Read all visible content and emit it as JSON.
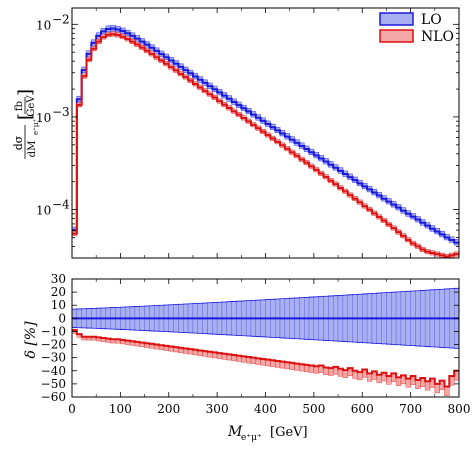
{
  "chart_data": [
    {
      "type": "line",
      "subtype": "histogram-band",
      "panel": "main",
      "yscale": "log",
      "xlim": [
        0,
        800
      ],
      "ylim": [
        3e-05,
        0.015
      ],
      "ylabel": {
        "num": "dσ",
        "den_main": "dM",
        "den_sub": "e⁺μ⁺",
        "unit_num": "fb",
        "unit_den": "GeV"
      },
      "yticks": [
        {
          "value": 0.0001,
          "base": "10",
          "exp": "−4"
        },
        {
          "value": 0.001,
          "base": "10",
          "exp": "−3"
        },
        {
          "value": 0.01,
          "base": "10",
          "exp": "−2"
        }
      ],
      "legend_position": "top-right",
      "bin_width": 10,
      "bin_edges_start": 0,
      "series": [
        {
          "name": "LO",
          "color": "#1a1adc",
          "fill": "#a8b0f2",
          "values": [
            6e-05,
            0.00155,
            0.0032,
            0.0048,
            0.0063,
            0.0075,
            0.0084,
            0.0089,
            0.009,
            0.0088,
            0.00845,
            0.008,
            0.0075,
            0.007,
            0.0065,
            0.00603,
            0.00558,
            0.00516,
            0.00477,
            0.00441,
            0.00407,
            0.00376,
            0.00347,
            0.0032,
            0.00296,
            0.00273,
            0.00252,
            0.00233,
            0.00215,
            0.00199,
            0.00184,
            0.0017,
            0.00157,
            0.00145,
            0.00134,
            0.00124,
            0.00115,
            0.00106,
            0.00098,
            0.000906,
            0.000838,
            0.000775,
            0.000717,
            0.000663,
            0.000613,
            0.000567,
            0.000525,
            0.000486,
            0.00045,
            0.000416,
            0.000385,
            0.000356,
            0.00033,
            0.000305,
            0.000283,
            0.000262,
            0.000242,
            0.000224,
            0.000208,
            0.000192,
            0.000178,
            0.000165,
            0.000153,
            0.000142,
            0.000131,
            0.000122,
            0.000113,
            0.000105,
            9.7e-05,
            9e-05,
            8.4e-05,
            7.8e-05,
            7.2e-05,
            6.7e-05,
            6.2e-05,
            5.8e-05,
            5.4e-05,
            5e-05,
            4.7e-05,
            4.4e-05
          ],
          "band_rel": [
            0.06,
            0.08
          ]
        },
        {
          "name": "NLO",
          "color": "#dd1111",
          "fill": "#f4a8a8",
          "values": [
            5.5e-05,
            0.00135,
            0.00275,
            0.00415,
            0.00545,
            0.0065,
            0.00728,
            0.00772,
            0.00782,
            0.00766,
            0.00735,
            0.00695,
            0.0065,
            0.00605,
            0.0056,
            0.00518,
            0.00478,
            0.00441,
            0.00407,
            0.00375,
            0.00345,
            0.00318,
            0.00292,
            0.00269,
            0.00247,
            0.00227,
            0.00208,
            0.00191,
            0.00176,
            0.00162,
            0.00148,
            0.00136,
            0.00125,
            0.00115,
            0.00106,
            0.000973,
            0.000895,
            0.000822,
            0.000755,
            0.000694,
            0.000636,
            0.000585,
            0.000538,
            0.000495,
            0.000453,
            0.000414,
            0.000381,
            0.000347,
            0.00032,
            0.000293,
            0.000268,
            0.000245,
            0.000225,
            0.000205,
            0.000188,
            0.000171,
            0.000157,
            0.000143,
            0.000131,
            0.00012,
            0.000109,
            0.0001,
            9.1e-05,
            8.3e-05,
            7.6e-05,
            6.9e-05,
            6.3e-05,
            5.7e-05,
            5.2e-05,
            4.7e-05,
            4.3e-05,
            4e-05,
            3.7e-05,
            3.5e-05,
            3.4e-05,
            3.3e-05,
            3.2e-05,
            3.1e-05,
            3.2e-05,
            3.3e-05
          ],
          "band_rel": [
            0.05,
            0.06
          ]
        }
      ]
    },
    {
      "type": "line",
      "subtype": "histogram-band",
      "panel": "ratio",
      "xlim": [
        0,
        800
      ],
      "ylim": [
        -60,
        30
      ],
      "xlabel": {
        "main": "M",
        "sub": "e⁺μ⁺",
        "unit": "[GeV]"
      },
      "ylabel": "δ [%]",
      "xticks": [
        0,
        100,
        200,
        300,
        400,
        500,
        600,
        700,
        800
      ],
      "yticks": [
        -60,
        -50,
        -40,
        -30,
        -20,
        -10,
        0,
        10,
        20,
        30
      ],
      "lo_band_halfwidth_start": 7,
      "lo_band_halfwidth_end": 23,
      "nlo_delta": [
        -9,
        -12,
        -14,
        -14,
        -14,
        -14.5,
        -15,
        -15.5,
        -16,
        -16,
        -16.5,
        -17,
        -17.5,
        -18,
        -18.5,
        -19,
        -19.5,
        -20,
        -20.5,
        -21,
        -21.5,
        -22,
        -22.5,
        -23,
        -23.5,
        -24,
        -24.5,
        -25,
        -25.5,
        -26,
        -26.5,
        -27,
        -27.5,
        -28,
        -28.5,
        -29,
        -29.5,
        -30,
        -30.5,
        -31,
        -31.5,
        -32,
        -32.5,
        -33,
        -33.5,
        -34,
        -34.5,
        -35,
        -35.5,
        -36,
        -36.5,
        -36,
        -37.5,
        -38,
        -37,
        -38.5,
        -39.5,
        -38,
        -40,
        -41,
        -39,
        -42,
        -40.5,
        -43,
        -41.5,
        -44,
        -42,
        -45,
        -43.5,
        -46,
        -44,
        -47,
        -45.5,
        -48,
        -46,
        -50,
        -47.5,
        -52,
        -44,
        -40
      ],
      "nlo_band_minus": 4
    }
  ]
}
